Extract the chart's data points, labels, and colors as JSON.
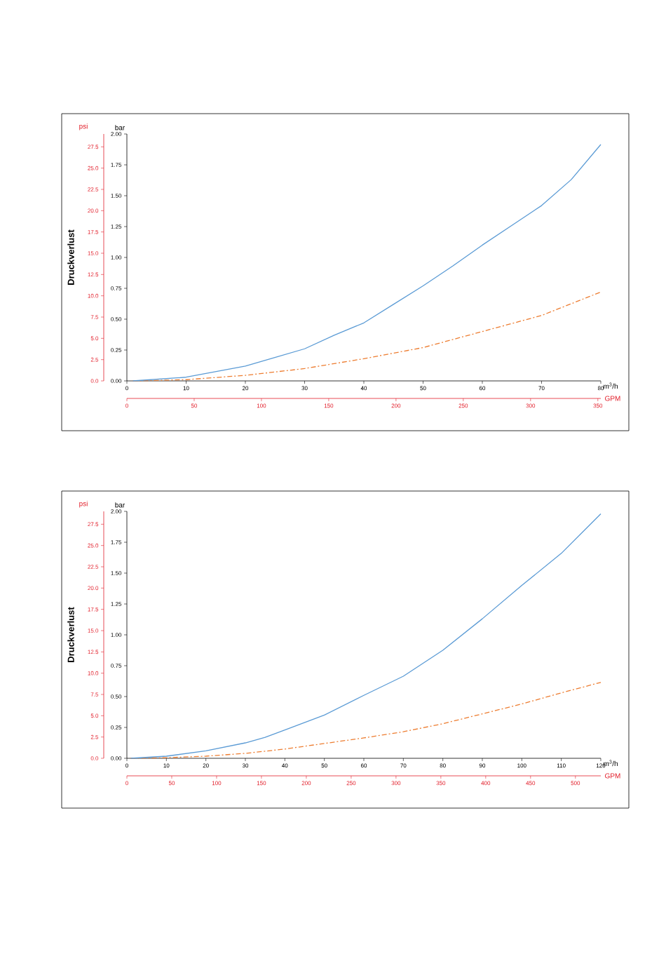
{
  "chart_data": [
    {
      "type": "line",
      "xlabel": "m$^{3}$/h",
      "x2label": "GPM",
      "ylabel": "bar",
      "y2label": "psi",
      "annotations": [
        "Druckverlust"
      ],
      "line_style": "solid",
      "xlim": [
        0,
        80
      ],
      "xticks": [
        0,
        10,
        20,
        30,
        40,
        50,
        60,
        70,
        80
      ],
      "x2lim": [
        0,
        352.2
      ],
      "x2ticks": [
        0,
        50,
        100,
        150,
        200,
        250,
        300,
        350
      ],
      "ylim": [
        0,
        2
      ],
      "yticks": [
        {
          "value": 0,
          "label": "0.00"
        },
        {
          "value": 0.25,
          "label": "0.25"
        },
        {
          "value": 0.5,
          "label": "0.50"
        },
        {
          "value": 0.75,
          "label": "0.75"
        },
        {
          "value": 1,
          "label": "1.00"
        },
        {
          "value": 1.25,
          "label": "1.25"
        },
        {
          "value": 1.5,
          "label": "1.50"
        },
        {
          "value": 1.75,
          "label": "1.75"
        },
        {
          "value": 2,
          "label": "2.00"
        }
      ],
      "y2lim": [
        0,
        29.01
      ],
      "y2ticks": [
        {
          "value": 0,
          "label": "0.0"
        },
        {
          "value": 2.5,
          "label": "2.5"
        },
        {
          "value": 5,
          "label": "5.0"
        },
        {
          "value": 7.5,
          "label": "7.5"
        },
        {
          "value": 10,
          "label": "10.0"
        },
        {
          "value": 12.5,
          "label": "12.5"
        },
        {
          "value": 15,
          "label": "15.0"
        },
        {
          "value": 17.5,
          "label": "17.5"
        },
        {
          "value": 20,
          "label": "20.0"
        },
        {
          "value": 22.5,
          "label": "22.5"
        },
        {
          "value": 25,
          "label": "25.0"
        },
        {
          "value": 27.5,
          "label": "27.5"
        }
      ],
      "series": [
        {
          "color": "#ed7d31",
          "line_style": "dashdot",
          "x": [
            1,
            10,
            20,
            30,
            40,
            50,
            60,
            70,
            80
          ],
          "values": [
            0,
            0.01,
            0.045,
            0.1,
            0.18,
            0.27,
            0.4,
            0.53,
            0.72
          ]
        },
        {
          "color": "#5b9bd5",
          "x": [
            1,
            10,
            20,
            30,
            35,
            40,
            45,
            50,
            55,
            60,
            65,
            70,
            75,
            80
          ],
          "values": [
            0,
            0.03,
            0.12,
            0.26,
            0.37,
            0.47,
            0.62,
            0.77,
            0.93,
            1.1,
            1.26,
            1.42,
            1.63,
            1.915
          ]
        }
      ]
    },
    {
      "type": "line",
      "xlabel": "m$^{3}$/h",
      "x2label": "GPM",
      "ylabel": "bar",
      "y2label": "psi",
      "annotations": [
        "Druckverlust"
      ],
      "line_style": "solid",
      "xlim": [
        0,
        120
      ],
      "xticks": [
        0,
        10,
        20,
        30,
        40,
        50,
        60,
        70,
        80,
        90,
        100,
        110,
        120
      ],
      "x2lim": [
        0,
        528.3
      ],
      "x2ticks": [
        0,
        50,
        100,
        150,
        200,
        250,
        300,
        350,
        400,
        450,
        500
      ],
      "ylim": [
        0,
        2
      ],
      "yticks": [
        {
          "value": 0,
          "label": "0.00"
        },
        {
          "value": 0.25,
          "label": "0.25"
        },
        {
          "value": 0.5,
          "label": "0.50"
        },
        {
          "value": 0.75,
          "label": "0.75"
        },
        {
          "value": 1,
          "label": "1.00"
        },
        {
          "value": 1.25,
          "label": "1.25"
        },
        {
          "value": 1.5,
          "label": "1.50"
        },
        {
          "value": 1.75,
          "label": "1.75"
        },
        {
          "value": 2,
          "label": "2.00"
        }
      ],
      "y2lim": [
        0,
        29.01
      ],
      "y2ticks": [
        {
          "value": 0,
          "label": "0.0"
        },
        {
          "value": 2.5,
          "label": "2.5"
        },
        {
          "value": 5,
          "label": "5.0"
        },
        {
          "value": 7.5,
          "label": "7.5"
        },
        {
          "value": 10,
          "label": "10.0"
        },
        {
          "value": 12.5,
          "label": "12.5"
        },
        {
          "value": 15,
          "label": "15.0"
        },
        {
          "value": 17.5,
          "label": "17.5"
        },
        {
          "value": 20,
          "label": "20.0"
        },
        {
          "value": 22.5,
          "label": "22.5"
        },
        {
          "value": 25,
          "label": "25.0"
        },
        {
          "value": 27.5,
          "label": "27.5"
        }
      ],
      "series": [
        {
          "color": "#ed7d31",
          "line_style": "dashdot",
          "x": [
            1,
            10,
            20,
            30,
            40,
            50,
            60,
            70,
            80,
            90,
            100,
            110,
            120
          ],
          "values": [
            0,
            0.005,
            0.017,
            0.04,
            0.075,
            0.12,
            0.165,
            0.215,
            0.28,
            0.36,
            0.44,
            0.53,
            0.615
          ]
        },
        {
          "color": "#5b9bd5",
          "x": [
            1,
            10,
            20,
            30,
            35,
            40,
            50,
            60,
            70,
            80,
            90,
            100,
            110,
            120
          ],
          "values": [
            0,
            0.017,
            0.06,
            0.125,
            0.17,
            0.23,
            0.35,
            0.51,
            0.665,
            0.875,
            1.13,
            1.4,
            1.66,
            1.98
          ]
        }
      ]
    }
  ]
}
